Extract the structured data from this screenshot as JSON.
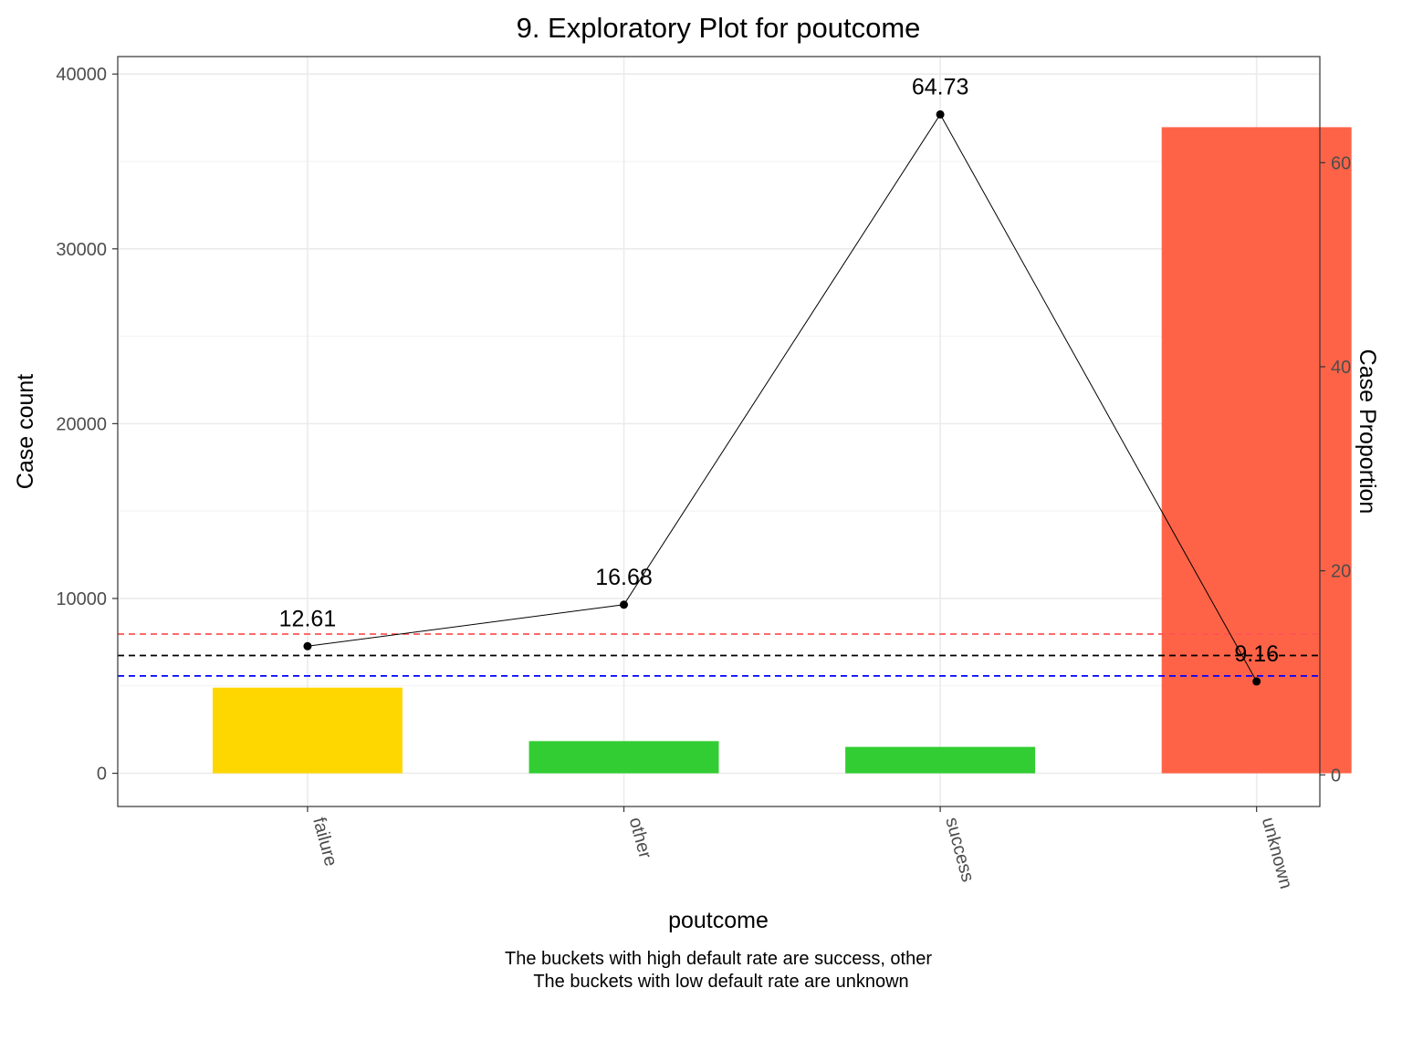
{
  "chart_data": {
    "type": "bar",
    "title": "9. Exploratory Plot for poutcome",
    "xlabel": "poutcome",
    "ylabel": "Case count",
    "y2label": "Case Proportion",
    "categories": [
      "failure",
      "other",
      "success",
      "unknown"
    ],
    "bar_values": [
      4900,
      1840,
      1510,
      36960
    ],
    "bar_colors": [
      "#FFD700",
      "#32CD32",
      "#32CD32",
      "#FF6347"
    ],
    "line_values": [
      12.61,
      16.68,
      64.73,
      9.16
    ],
    "line_labels": [
      "12.61",
      "16.68",
      "64.73",
      "9.16"
    ],
    "ylim": [
      -1900,
      41000
    ],
    "y2lim": [
      -3.1,
      70.4
    ],
    "yticks": [
      0,
      10000,
      20000,
      30000,
      40000
    ],
    "ytick_labels": [
      "0",
      "10000",
      "20000",
      "30000",
      "40000"
    ],
    "y2ticks": [
      0,
      20,
      40,
      60
    ],
    "y2tick_labels": [
      "0",
      "20",
      "40",
      "60"
    ],
    "reference_lines": [
      {
        "value": 13.8,
        "color": "#FF5555"
      },
      {
        "value": 11.7,
        "color": "#000000"
      },
      {
        "value": 9.7,
        "color": "#0000FF"
      }
    ],
    "caption_lines": [
      "The buckets with high default rate are success, other",
      "The buckets with low default rate are unknown"
    ],
    "grid": true,
    "legend": "none"
  }
}
